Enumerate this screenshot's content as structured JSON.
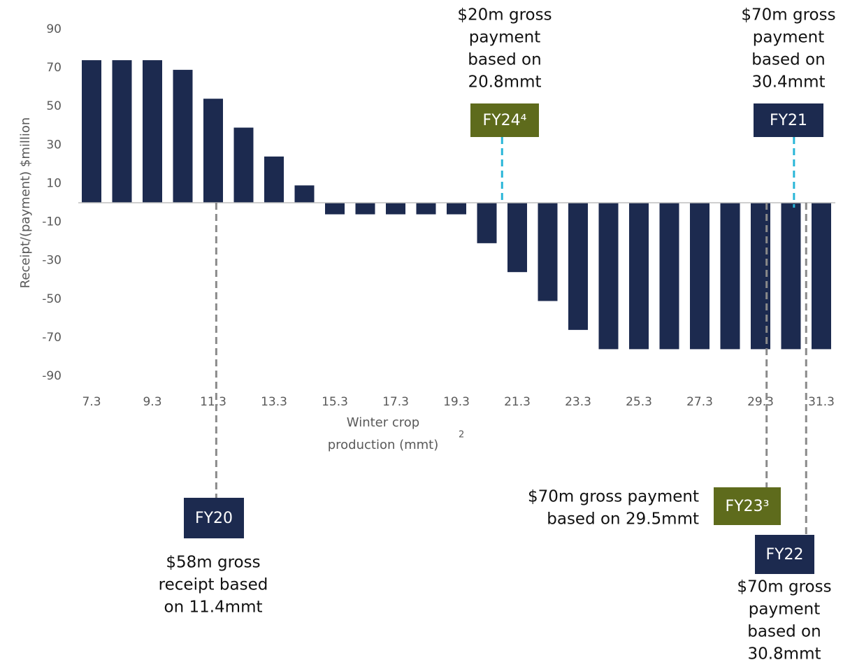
{
  "chart_data": {
    "type": "bar",
    "y_label": "Receipt/(payment) $million",
    "x_label": {
      "lines": [
        "Winter crop",
        "production (mmt)"
      ],
      "superscript": "2"
    },
    "categories": [
      "7.3",
      null,
      "9.3",
      null,
      "11.3",
      null,
      "13.3",
      null,
      "15.3",
      null,
      "17.3",
      null,
      "19.3",
      null,
      "21.3",
      null,
      "23.3",
      null,
      "25.3",
      null,
      "27.3",
      null,
      "29.3",
      null,
      "31.3"
    ],
    "values": [
      74,
      74,
      74,
      69,
      54,
      39,
      24,
      9,
      -6,
      -6,
      -6,
      -6,
      -6,
      -21,
      -36,
      -51,
      -66,
      -76,
      -76,
      -76,
      -76,
      -76,
      -76,
      -76,
      -76
    ],
    "color": "#1c2a4f",
    "ylim": [
      -90,
      90
    ],
    "yticks": [
      -90,
      -70,
      -50,
      -30,
      -10,
      10,
      30,
      50,
      70,
      90
    ],
    "annotations": [
      {
        "label": "FY24⁴",
        "x": 20.8,
        "color": "#5e6b1c",
        "line_color": "#29b6d8",
        "text": [
          "$20m gross",
          "payment",
          "based on",
          "20.8mmt"
        ]
      },
      {
        "label": "FY21",
        "x": 30.4,
        "color": "#1c2a4f",
        "line_color": "#29b6d8",
        "text": [
          "$70m gross",
          "payment",
          "based on",
          "30.4mmt"
        ]
      },
      {
        "label": "FY20",
        "x": 11.4,
        "color": "#1c2a4f",
        "line_color": "#8a8a8a",
        "text": [
          "$58m gross",
          "receipt based",
          "on 11.4mmt"
        ]
      },
      {
        "label": "FY23³",
        "x": 29.5,
        "color": "#5e6b1c",
        "line_color": "#8a8a8a",
        "text": [
          "$70m gross payment",
          "based on 29.5mmt"
        ]
      },
      {
        "label": "FY22",
        "x": 30.8,
        "color": "#1c2a4f",
        "line_color": "#8a8a8a",
        "text": [
          "$70m gross",
          "payment",
          "based on",
          "30.8mmt"
        ]
      }
    ]
  }
}
